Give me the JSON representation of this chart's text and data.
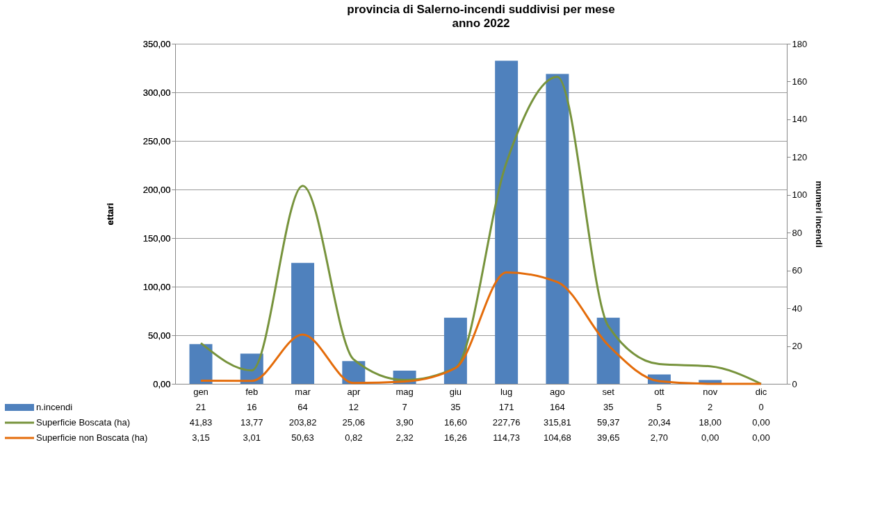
{
  "chart_data": {
    "type": "bar",
    "title": "provincia di Salerno-incendi suddivisi per mese",
    "subtitle": "anno 2022",
    "categories": [
      "gen",
      "feb",
      "mar",
      "apr",
      "mag",
      "giu",
      "lug",
      "ago",
      "set",
      "ott",
      "nov",
      "dic"
    ],
    "series": [
      {
        "name": "n.incendi",
        "axis": "y2",
        "color": "#4f81bd",
        "values": [
          21,
          16,
          64,
          12,
          7,
          35,
          171,
          164,
          35,
          5,
          2,
          0
        ],
        "value_labels": [
          "21",
          "16",
          "64",
          "12",
          "7",
          "35",
          "171",
          "164",
          "35",
          "5",
          "2",
          "0"
        ]
      },
      {
        "name": "Superficie Boscata (ha)",
        "type": "line",
        "color": "#77933c",
        "values": [
          41.83,
          13.77,
          203.82,
          25.06,
          3.9,
          16.6,
          227.76,
          315.81,
          59.37,
          20.34,
          18.0,
          0.0
        ],
        "value_labels": [
          "41,83",
          "13,77",
          "203,82",
          "25,06",
          "3,90",
          "16,60",
          "227,76",
          "315,81",
          "59,37",
          "20,34",
          "18,00",
          "0,00"
        ]
      },
      {
        "name": "Superficie non Boscata (ha)",
        "type": "line",
        "color": "#e46c0a",
        "values": [
          3.15,
          3.01,
          50.63,
          0.82,
          2.32,
          16.26,
          114.73,
          104.68,
          39.65,
          2.7,
          0.0,
          0.0
        ],
        "value_labels": [
          "3,15",
          "3,01",
          "50,63",
          "0,82",
          "2,32",
          "16,26",
          "114,73",
          "104,68",
          "39,65",
          "2,70",
          "0,00",
          "0,00"
        ]
      }
    ],
    "ylabel": "ettari",
    "y2label": "mumeri incendi",
    "ylim": [
      0,
      350
    ],
    "yticks": [
      {
        "value": 0,
        "label": "0,00"
      },
      {
        "value": 50,
        "label": "50,00"
      },
      {
        "value": 100,
        "label": "100,00"
      },
      {
        "value": 150,
        "label": "150,00"
      },
      {
        "value": 200,
        "label": "200,00"
      },
      {
        "value": 250,
        "label": "250,00"
      },
      {
        "value": 300,
        "label": "300,00"
      },
      {
        "value": 350,
        "label": "350,00"
      }
    ],
    "y2lim": [
      0,
      180
    ],
    "y2ticks": [
      0,
      20,
      40,
      60,
      80,
      100,
      120,
      140,
      160,
      180
    ],
    "grid": "y",
    "legend": "bottom"
  }
}
